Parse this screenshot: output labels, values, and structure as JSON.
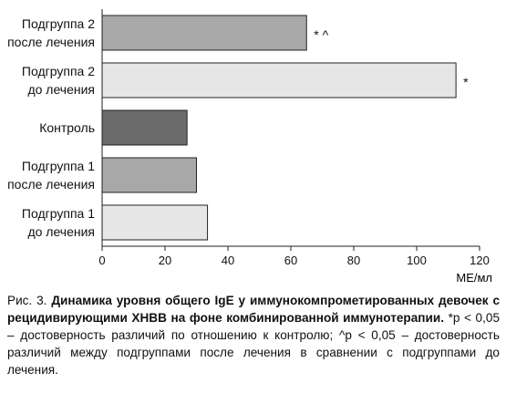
{
  "chart_data": {
    "type": "bar",
    "orientation": "horizontal",
    "categories": [
      [
        "Подгруппа 2",
        "после лечения"
      ],
      [
        "Подгруппа 2",
        "до лечения"
      ],
      [
        "Контроль"
      ],
      [
        "Подгруппа 1",
        "после лечения"
      ],
      [
        "Подгруппа 1",
        "до лечения"
      ]
    ],
    "values": [
      65,
      112.5,
      27,
      30,
      33.5
    ],
    "bar_colors": [
      "#a8a8a8",
      "#e6e6e6",
      "#6b6b6b",
      "#a8a8a8",
      "#e6e6e6"
    ],
    "annotations": [
      "* ^",
      "*",
      "",
      "",
      ""
    ],
    "xlim": [
      0,
      120
    ],
    "xticks": [
      0,
      20,
      40,
      60,
      80,
      100,
      120
    ],
    "xlabel": "МЕ/мл",
    "grid": false,
    "legend": "none"
  },
  "caption": {
    "prefix": "Рис. 3. ",
    "title": "Динамика уровня общего IgE у иммунокомпрометированных девочек с рецидивирующими ХНВВ на фоне комбинированной иммунотерапии.",
    "note": " *p < 0,05 – достоверность различий по отношению к контролю; ^p < 0,05 – достоверность различий между подгруппами после лечения в сравнении с подгруппами до лечения."
  }
}
